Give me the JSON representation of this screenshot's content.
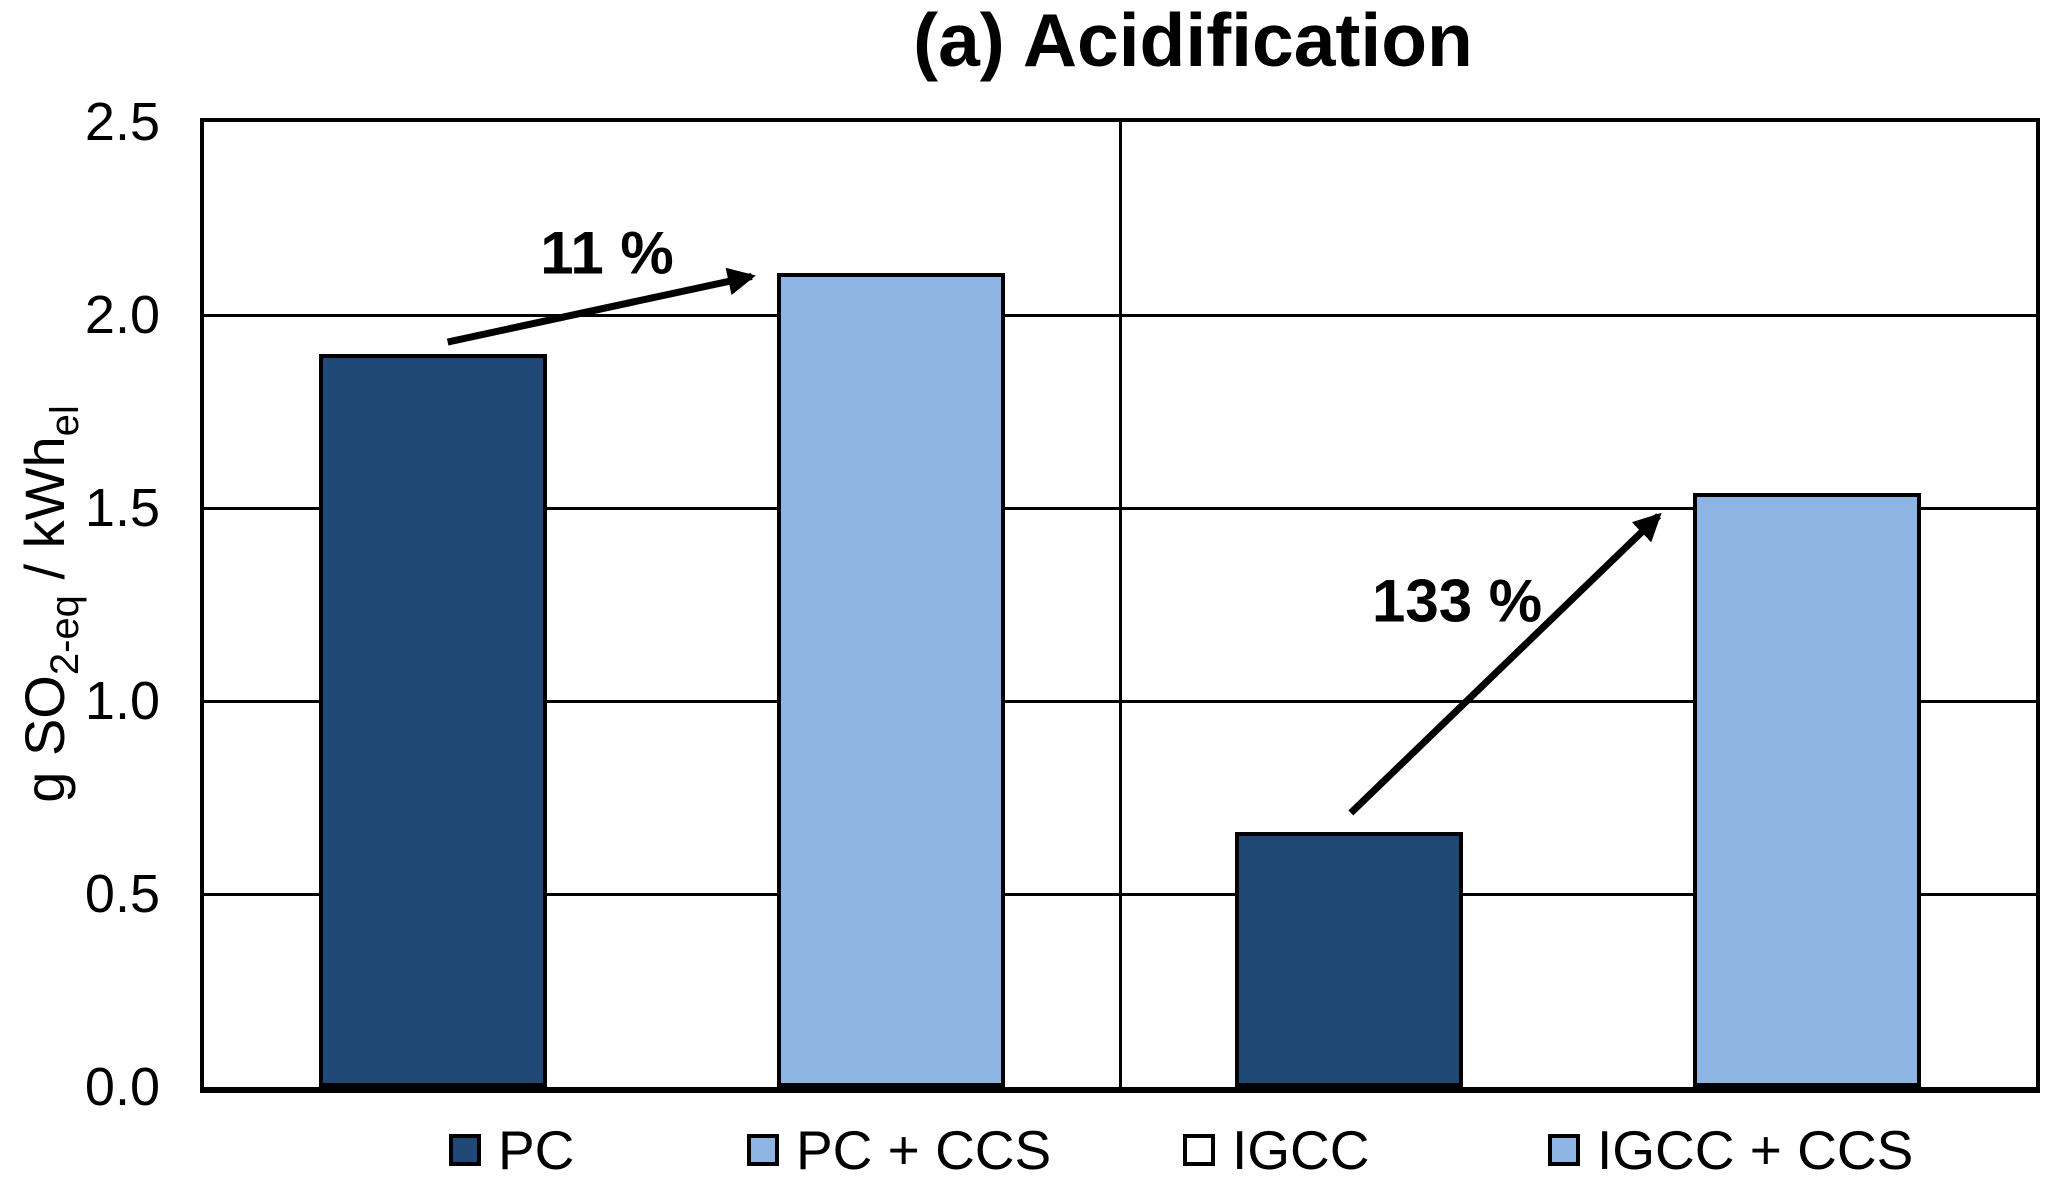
{
  "chart_data": {
    "type": "bar",
    "title": "(a) Acidification",
    "ylabel_parts": [
      {
        "text": "g SO"
      },
      {
        "text": "2-eq",
        "sub": true
      },
      {
        "text": " / kWh"
      },
      {
        "text": "el",
        "sub": true
      }
    ],
    "ylim": [
      0,
      2.5
    ],
    "ytick_step": 0.5,
    "yticks": [
      {
        "label": "2.5",
        "value": 2.5
      },
      {
        "label": "2.0",
        "value": 2.0
      },
      {
        "label": "1.5",
        "value": 1.5
      },
      {
        "label": "1.0",
        "value": 1.0
      },
      {
        "label": "0.5",
        "value": 0.5
      },
      {
        "label": "0.0",
        "value": 0.0
      }
    ],
    "grid": true,
    "panel_divider": true,
    "categories": [
      "PC",
      "PC + CCS",
      "IGCC",
      "IGCC + CCS"
    ],
    "bars": [
      {
        "label": "PC",
        "value": 1.9,
        "color": "#1F4876"
      },
      {
        "label": "PC + CCS",
        "value": 2.11,
        "color": "#8DB4E2"
      },
      {
        "label": "IGCC",
        "value": 0.66,
        "color": "#1F4876"
      },
      {
        "label": "IGCC + CCS",
        "value": 1.54,
        "color": "#8DB4E2"
      }
    ],
    "annotations": [
      {
        "text": "11 %",
        "label_x": 0.22,
        "label_value": 2.16,
        "arrow": {
          "x1": 0.133,
          "v1": 1.93,
          "x2": 0.299,
          "v2": 2.1
        }
      },
      {
        "text": "133 %",
        "label_x": 0.684,
        "label_value": 1.26,
        "arrow": {
          "x1": 0.626,
          "v1": 0.71,
          "x2": 0.794,
          "v2": 1.48
        }
      }
    ],
    "legend": {
      "position": "bottom",
      "items": [
        {
          "label": "PC",
          "color": "#1F4876"
        },
        {
          "label": "PC + CCS",
          "color": "#8DB4E2"
        },
        {
          "label": "IGCC",
          "color": "#FFFFFF"
        },
        {
          "label": "IGCC + CCS",
          "color": "#8DB4E2"
        }
      ]
    },
    "colors": {
      "dark_blue": "#1F4876",
      "light_blue": "#8DB4E2",
      "bar_border": "#000000",
      "grid": "#000000",
      "background": "#FFFFFF"
    }
  }
}
